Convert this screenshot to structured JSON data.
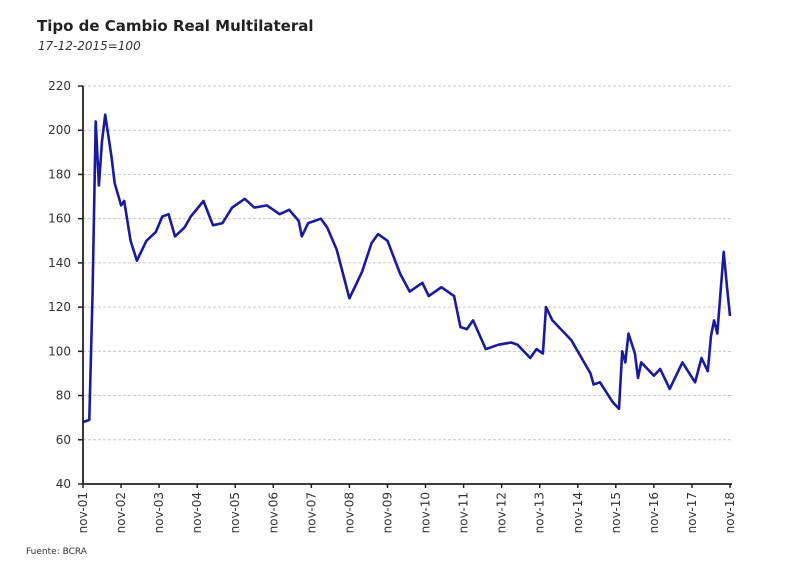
{
  "chart_data": {
    "type": "line",
    "title": "Tipo de Cambio Real Multilateral",
    "subtitle": "17-12-2015=100",
    "source": "Fuente: BCRA",
    "xlabel": "",
    "ylabel": "",
    "ylim": [
      40,
      220
    ],
    "yticks": [
      40,
      60,
      80,
      100,
      120,
      140,
      160,
      180,
      200,
      220
    ],
    "xlim": [
      "2001-11",
      "2018-11"
    ],
    "xticks": [
      "nov-01",
      "nov-02",
      "nov-03",
      "nov-04",
      "nov-05",
      "nov-06",
      "nov-07",
      "nov-08",
      "nov-09",
      "nov-10",
      "nov-11",
      "nov-12",
      "nov-13",
      "nov-14",
      "nov-15",
      "nov-16",
      "nov-17",
      "nov-18"
    ],
    "grid": "horizontal dashed",
    "line_color": "#1a1aa0",
    "series": [
      {
        "points": [
          [
            "2001-11",
            68
          ],
          [
            "2002-01",
            69
          ],
          [
            "2002-02",
            125
          ],
          [
            "2002-03",
            204
          ],
          [
            "2002-04",
            175
          ],
          [
            "2002-05",
            195
          ],
          [
            "2002-06",
            207
          ],
          [
            "2002-08",
            188
          ],
          [
            "2002-09",
            176
          ],
          [
            "2002-11",
            166
          ],
          [
            "2002-12",
            168
          ],
          [
            "2003-02",
            150
          ],
          [
            "2003-04",
            141
          ],
          [
            "2003-07",
            150
          ],
          [
            "2003-10",
            154
          ],
          [
            "2003-12",
            161
          ],
          [
            "2004-02",
            162
          ],
          [
            "2004-04",
            152
          ],
          [
            "2004-07",
            156
          ],
          [
            "2004-09",
            161
          ],
          [
            "2005-01",
            168
          ],
          [
            "2005-04",
            157
          ],
          [
            "2005-07",
            158
          ],
          [
            "2005-10",
            165
          ],
          [
            "2006-02",
            169
          ],
          [
            "2006-05",
            165
          ],
          [
            "2006-09",
            166
          ],
          [
            "2007-01",
            162
          ],
          [
            "2007-04",
            164
          ],
          [
            "2007-07",
            159
          ],
          [
            "2007-08",
            152
          ],
          [
            "2007-10",
            158
          ],
          [
            "2008-02",
            160
          ],
          [
            "2008-04",
            156
          ],
          [
            "2008-07",
            146
          ],
          [
            "2008-11",
            124
          ],
          [
            "2009-01",
            130
          ],
          [
            "2009-03",
            136
          ],
          [
            "2009-06",
            149
          ],
          [
            "2009-08",
            153
          ],
          [
            "2009-11",
            150
          ],
          [
            "2010-03",
            135
          ],
          [
            "2010-06",
            127
          ],
          [
            "2010-10",
            131
          ],
          [
            "2010-12",
            125
          ],
          [
            "2011-04",
            129
          ],
          [
            "2011-08",
            125
          ],
          [
            "2011-10",
            111
          ],
          [
            "2011-12",
            110
          ],
          [
            "2012-02",
            114
          ],
          [
            "2012-06",
            101
          ],
          [
            "2012-10",
            103
          ],
          [
            "2013-02",
            104
          ],
          [
            "2013-04",
            103
          ],
          [
            "2013-08",
            97
          ],
          [
            "2013-10",
            101
          ],
          [
            "2013-12",
            99
          ],
          [
            "2014-01",
            120
          ],
          [
            "2014-03",
            114
          ],
          [
            "2014-07",
            108
          ],
          [
            "2014-09",
            105
          ],
          [
            "2015-03",
            90
          ],
          [
            "2015-04",
            85
          ],
          [
            "2015-06",
            86
          ],
          [
            "2015-10",
            77
          ],
          [
            "2015-12",
            74
          ],
          [
            "2016-01",
            100
          ],
          [
            "2016-02",
            95
          ],
          [
            "2016-03",
            108
          ],
          [
            "2016-05",
            99
          ],
          [
            "2016-06",
            88
          ],
          [
            "2016-07",
            95
          ],
          [
            "2016-11",
            89
          ],
          [
            "2017-01",
            92
          ],
          [
            "2017-04",
            83
          ],
          [
            "2017-08",
            95
          ],
          [
            "2017-12",
            86
          ],
          [
            "2018-02",
            97
          ],
          [
            "2018-04",
            91
          ],
          [
            "2018-05",
            107
          ],
          [
            "2018-06",
            114
          ],
          [
            "2018-07",
            108
          ],
          [
            "2018-09",
            145
          ],
          [
            "2018-10",
            130
          ],
          [
            "2018-11",
            116
          ]
        ]
      }
    ]
  }
}
